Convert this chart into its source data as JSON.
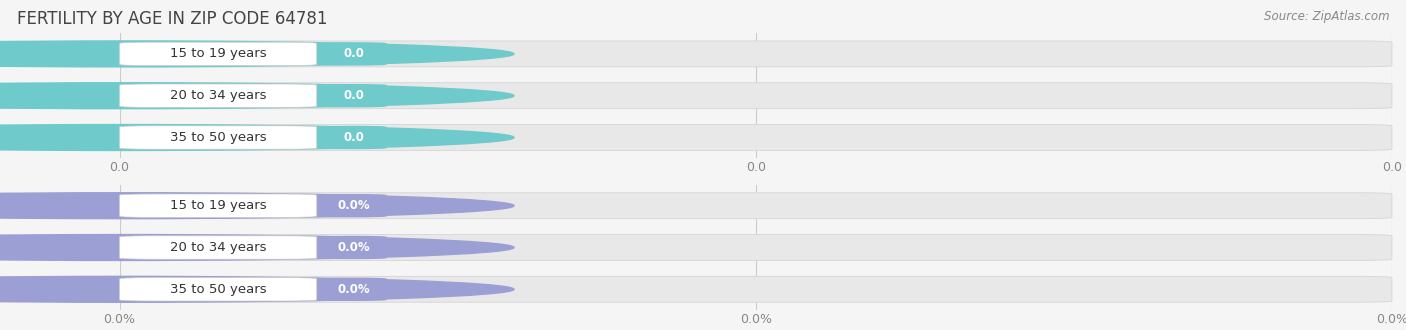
{
  "title": "FERTILITY BY AGE IN ZIP CODE 64781",
  "source": "Source: ZipAtlas.com",
  "top_section": {
    "categories": [
      "15 to 19 years",
      "20 to 34 years",
      "35 to 50 years"
    ],
    "values": [
      0.0,
      0.0,
      0.0
    ],
    "bar_color": "#6ecacb",
    "accent_color": "#6ecacb",
    "xlabel_labels": [
      "0.0",
      "0.0",
      "0.0"
    ]
  },
  "bottom_section": {
    "categories": [
      "15 to 19 years",
      "20 to 34 years",
      "35 to 50 years"
    ],
    "values": [
      0.0,
      0.0,
      0.0
    ],
    "bar_color": "#9b9fd4",
    "accent_color": "#9b9fd4",
    "xlabel_labels": [
      "0.0%",
      "0.0%",
      "0.0%"
    ]
  },
  "bg_bar_color": "#e8e8e8",
  "bg_bar_edge_color": "#d5d5d5",
  "figsize": [
    14.06,
    3.3
  ],
  "dpi": 100,
  "title_fontsize": 12,
  "label_fontsize": 9.5,
  "value_fontsize": 8.5,
  "tick_fontsize": 9,
  "source_fontsize": 8.5,
  "title_color": "#444444",
  "source_color": "#888888",
  "background_color": "#f5f5f5"
}
